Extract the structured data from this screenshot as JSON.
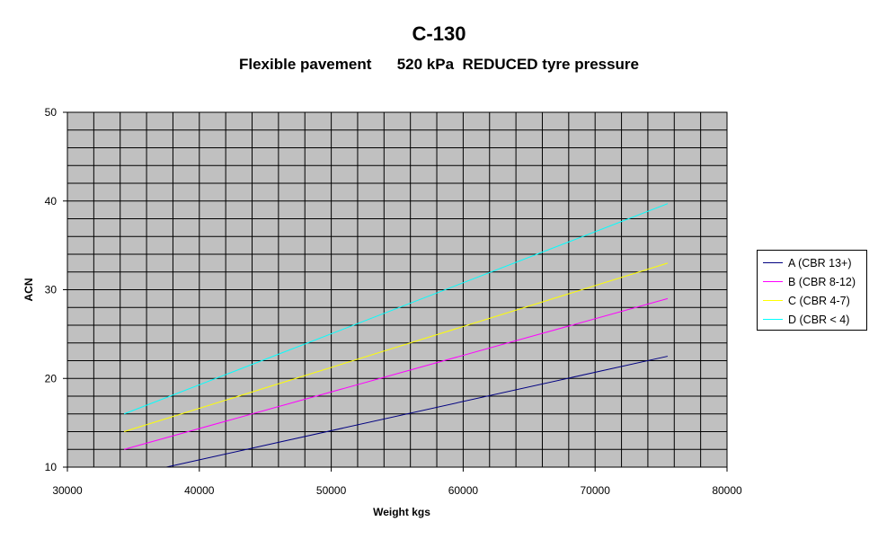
{
  "chart_data": {
    "type": "line",
    "title": "C-130",
    "subtitle": "Flexible pavement      520 kPa  REDUCED tyre pressure",
    "xlabel": "Weight kgs",
    "ylabel": "ACN",
    "xlim": [
      30000,
      80000
    ],
    "ylim": [
      10,
      50
    ],
    "x_ticks": [
      30000,
      40000,
      50000,
      60000,
      70000,
      80000
    ],
    "y_ticks": [
      10,
      20,
      30,
      40,
      50
    ],
    "plot_background": "#c0c0c0",
    "grid": true,
    "legend_position": "right",
    "series": [
      {
        "name": "A (CBR 13+)",
        "color": "#000080",
        "x": [
          37500,
          75500
        ],
        "y": [
          10.0,
          22.5
        ]
      },
      {
        "name": "B (CBR 8-12)",
        "color": "#ff00ff",
        "x": [
          34300,
          75500
        ],
        "y": [
          12.0,
          29.0
        ]
      },
      {
        "name": "C (CBR 4-7)",
        "color": "#ffff00",
        "x": [
          34300,
          75500
        ],
        "y": [
          14.0,
          33.0
        ]
      },
      {
        "name": "D (CBR < 4)",
        "color": "#00ffff",
        "x": [
          34300,
          75500
        ],
        "y": [
          16.0,
          39.7
        ]
      }
    ]
  }
}
